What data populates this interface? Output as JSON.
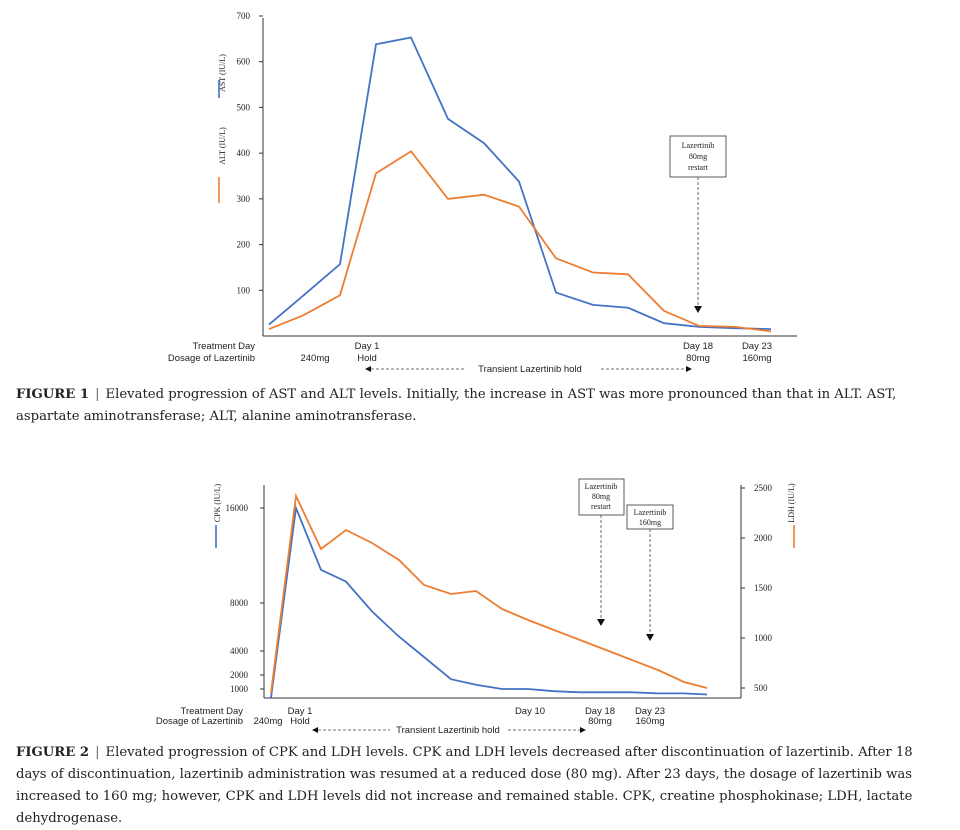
{
  "figure1": {
    "caption_label": "FIGURE 1",
    "caption_sep": "|",
    "caption_text": "Elevated progression of AST and ALT levels. Initially, the increase in AST was more pronounced than that in ALT. AST, aspartate aminotransferase; ALT, alanine aminotransferase.",
    "ytick_labels": [
      "700",
      "600",
      "500",
      "400",
      "300",
      "200",
      "100"
    ],
    "legend": {
      "ast": "AST (IU/L)",
      "alt": "ALT (IU/L)"
    },
    "row_treatment_day": "Treatment Day",
    "row_dosage": "Dosage of Lazertinib",
    "labels": {
      "dose_240": "240mg",
      "day1": "Day 1",
      "hold": "Hold",
      "hold_span": "Transient Lazertinib hold",
      "day18": "Day 18",
      "dose_80": "80mg",
      "day23": "Day 23",
      "dose_160": "160mg"
    },
    "annotation": [
      "Lazertinib",
      "80mg",
      "restart"
    ],
    "colors": {
      "ast": "#4472c4",
      "alt": "#ed7d31"
    }
  },
  "figure2": {
    "caption_label": "FIGURE 2",
    "caption_sep": "|",
    "caption_text": "Elevated progression of CPK and LDH levels. CPK and LDH levels decreased after discontinuation of lazertinib. After 18 days of discontinuation, lazertinib administration was resumed at a reduced dose (80 mg). After 23 days, the dosage of lazertinib was increased to 160 mg; however, CPK and LDH levels did not increase and remained stable. CPK, creatine phosphokinase; LDH, lactate dehydrogenase.",
    "ytick_left": [
      "16000",
      "8000",
      "4000",
      "2000",
      "1000"
    ],
    "ytick_right": [
      "2500",
      "2000",
      "1500",
      "1000",
      "500"
    ],
    "legend": {
      "cpk": "CPK (IU/L)",
      "ldh": "LDH (IU/L)"
    },
    "row_treatment_day": "Treatment Day",
    "row_dosage": "Dosage of Lazertinib",
    "labels": {
      "dose_240": "240mg",
      "day1": "Day 1",
      "hold": "Hold",
      "hold_span": "Transient Lazertinib hold",
      "day10": "Day 10",
      "day18": "Day 18",
      "dose_80": "80mg",
      "day23": "Day 23",
      "dose_160": "160mg"
    },
    "annotation1": [
      "Lazertinib",
      "80mg",
      "restart"
    ],
    "annotation2": [
      "Lazertinib",
      "160mg"
    ],
    "colors": {
      "cpk": "#4472c4",
      "ldh": "#ed7d31"
    }
  },
  "chart_data": [
    {
      "type": "line",
      "ylim": [
        0,
        700
      ],
      "yticks": [
        100,
        200,
        300,
        400,
        500,
        600,
        700
      ],
      "series": [
        {
          "name": "AST (IU/L)",
          "x": [
            0,
            1,
            2,
            3,
            4,
            5,
            6,
            7,
            8,
            9,
            10,
            11,
            12,
            13,
            14
          ],
          "values": [
            25,
            88,
            157,
            638,
            653,
            475,
            422,
            338,
            95,
            68,
            62,
            28,
            20,
            17,
            15
          ]
        },
        {
          "name": "ALT (IU/L)",
          "x": [
            0,
            1,
            2,
            3,
            4,
            5,
            6,
            7,
            8,
            9,
            10,
            11,
            12,
            13,
            14
          ],
          "values": [
            15,
            45,
            89,
            356,
            404,
            300,
            309,
            283,
            170,
            139,
            135,
            55,
            22,
            20,
            10
          ]
        }
      ]
    },
    {
      "type": "line",
      "ylim_left": [
        0,
        16000
      ],
      "ylim_right": [
        0,
        2500
      ],
      "series": [
        {
          "name": "CPK (IU/L)",
          "axis": "left",
          "x": [
            0,
            1,
            2,
            3,
            4,
            5,
            6,
            7,
            8,
            9,
            10,
            11,
            12,
            13,
            14,
            15,
            16,
            17
          ],
          "values": [
            200,
            16000,
            10800,
            9800,
            7300,
            5200,
            3500,
            1700,
            1300,
            1000,
            1000,
            800,
            700,
            700,
            700,
            600,
            600,
            500
          ]
        },
        {
          "name": "LDH (IU/L)",
          "axis": "right",
          "x": [
            0,
            1,
            2,
            3,
            4,
            5,
            6,
            7,
            8,
            9,
            10,
            11,
            12,
            13,
            14,
            15,
            16,
            17
          ],
          "values": [
            450,
            2420,
            1890,
            2080,
            1950,
            1780,
            1530,
            1440,
            1470,
            1290,
            1180,
            1080,
            980,
            880,
            780,
            680,
            560,
            500
          ]
        }
      ]
    }
  ]
}
